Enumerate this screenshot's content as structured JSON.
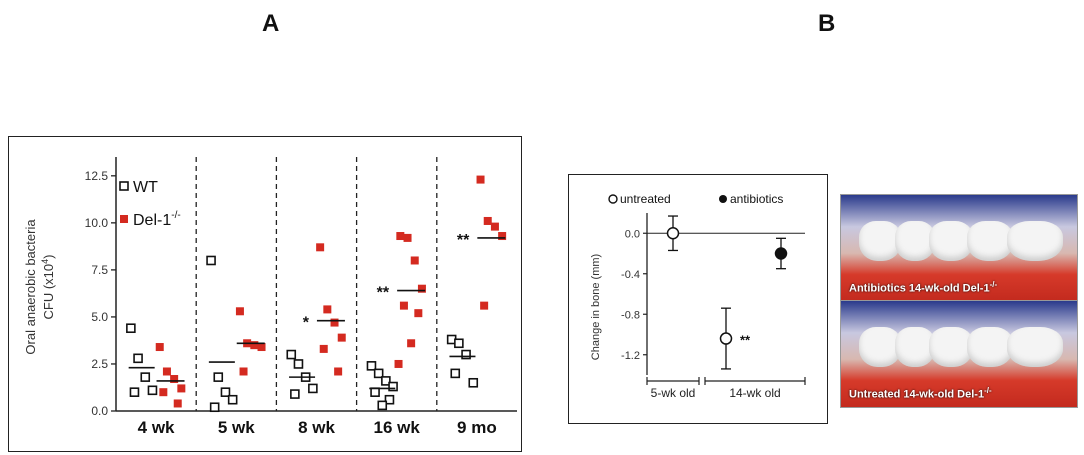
{
  "panels": {
    "a_label": "A",
    "b_label": "B"
  },
  "chart_data": [
    {
      "type": "scatter",
      "panel": "A",
      "ylabel_line1": "Oral anaerobic bacteria",
      "ylabel_line2": "CFU (x10",
      "ylabel_sup": "4",
      "ylabel_tail": ")",
      "ylim": [
        0,
        13.5
      ],
      "yticks": [
        "0.0",
        "2.5",
        "5.0",
        "7.5",
        "10.0",
        "12.5"
      ],
      "ytick_values": [
        0,
        2.5,
        5.0,
        7.5,
        10.0,
        12.5
      ],
      "categories": [
        "4 wk",
        "5 wk",
        "8 wk",
        "16 wk",
        "9 mo"
      ],
      "legend": {
        "wt": "WT",
        "del": "Del-1",
        "del_sup": "-/-",
        "placement": "top-left"
      },
      "colors": {
        "wt": "#111111",
        "del": "#d42a20"
      },
      "series": [
        {
          "name": "WT",
          "marker": "open-square",
          "points": [
            [
              4.4,
              2.8,
              1.8,
              1.1,
              1.0
            ],
            [
              8.0,
              1.8,
              1.0,
              0.6,
              0.2
            ],
            [
              3.0,
              2.5,
              1.8,
              1.2,
              0.9
            ],
            [
              2.4,
              2.0,
              1.6,
              1.3,
              1.0,
              0.6,
              0.3
            ],
            [
              3.8,
              3.6,
              3.0,
              1.5,
              2.0
            ]
          ],
          "means": [
            2.3,
            2.6,
            1.8,
            1.2,
            2.9
          ]
        },
        {
          "name": "Del-1-/-",
          "marker": "filled-square",
          "points": [
            [
              3.4,
              2.1,
              1.7,
              1.2,
              1.0,
              0.4
            ],
            [
              5.3,
              3.6,
              3.5,
              3.4,
              2.1
            ],
            [
              8.7,
              5.4,
              4.7,
              3.9,
              3.3,
              2.1
            ],
            [
              9.3,
              9.2,
              8.0,
              6.5,
              5.6,
              5.2,
              3.6,
              2.5
            ],
            [
              12.3,
              10.1,
              9.8,
              9.3,
              5.6
            ]
          ],
          "means": [
            1.6,
            3.6,
            4.8,
            6.4,
            9.2
          ]
        }
      ],
      "significance": [
        "",
        "",
        "*",
        "**",
        "**"
      ]
    },
    {
      "type": "scatter",
      "panel": "B",
      "ylabel": "Change in bone (mm)",
      "ylim": [
        -1.4,
        0.2
      ],
      "yticks": [
        "0.0",
        "-0.4",
        "-0.8",
        "-1.2"
      ],
      "ytick_values": [
        0.0,
        -0.4,
        -0.8,
        -1.2
      ],
      "groups": [
        "5-wk old",
        "14-wk old"
      ],
      "legend": {
        "untreated": "untreated",
        "antibiotics": "antibiotics",
        "placement": "top"
      },
      "points": [
        {
          "group": "5-wk old",
          "series": "untreated",
          "value": 0.0,
          "err": 0.17
        },
        {
          "group": "14-wk old",
          "series": "untreated",
          "value": -1.04,
          "err": 0.3
        },
        {
          "group": "14-wk old",
          "series": "antibiotics",
          "value": -0.2,
          "err": 0.15
        }
      ],
      "significance": "**"
    }
  ],
  "photos": {
    "top_caption": "Antibiotics 14-wk-old Del-1",
    "top_sup": "-/-",
    "bottom_caption": "Untreated 14-wk-old Del-1",
    "bottom_sup": "-/-"
  }
}
